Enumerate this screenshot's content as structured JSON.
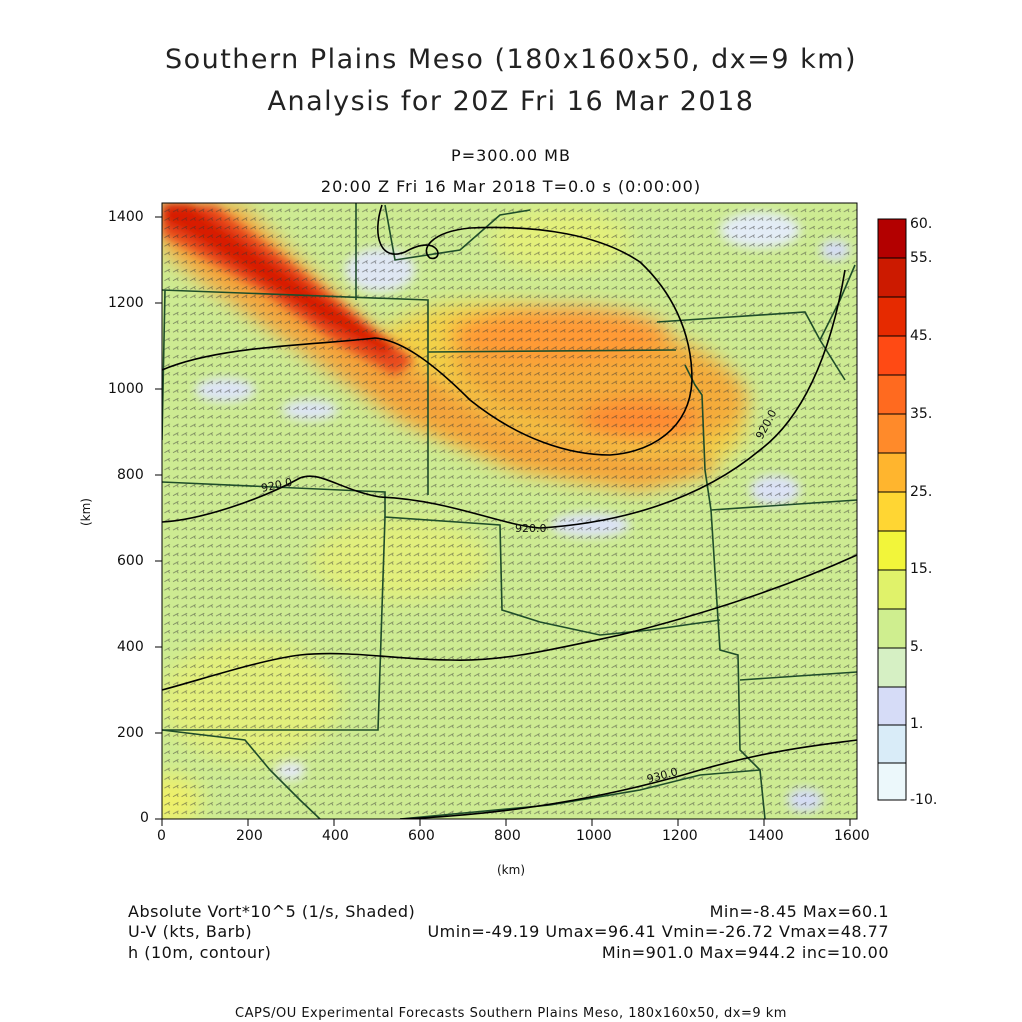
{
  "title_line1": "Southern Plains Meso (180x160x50, dx=9 km)",
  "title_line2": "Analysis for 20Z Fri 16 Mar 2018",
  "pressure_label": "P=300.00 MB",
  "time_label": "20:00 Z Fri 16 Mar 2018    T=0.0 s (0:00:00)",
  "axes": {
    "x_unit": "(km)",
    "y_unit": "(km)",
    "x_ticks": [
      "0",
      "200",
      "400",
      "600",
      "800",
      "1000",
      "1200",
      "1400",
      "1600"
    ],
    "y_ticks": [
      "0",
      "200",
      "400",
      "600",
      "800",
      "1000",
      "1200",
      "1400"
    ]
  },
  "colorbar": {
    "labels": [
      "60.",
      "55.",
      "45.",
      "35.",
      "25.",
      "15.",
      "5.",
      "1.",
      "-10."
    ],
    "colors": [
      "#b30000",
      "#cc1a00",
      "#e63300",
      "#ff5a1a",
      "#ff8a2a",
      "#ffb52e",
      "#ffdf33",
      "#f2f55c",
      "#d9f28f",
      "#c7eda6",
      "#d7dcf7",
      "#d4ecf7",
      "#eaf7fb"
    ]
  },
  "contour_labels": [
    "920.0",
    "920.0",
    "930.0",
    "920.0"
  ],
  "legend": {
    "field1": "Absolute Vort*10^5 (1/s, Shaded)",
    "field1_range": "Min=-8.45 Max=60.1",
    "field2": "U-V (kts, Barb)",
    "field2_range": "Umin=-49.19 Umax=96.41 Vmin=-26.72 Vmax=48.77",
    "field3": "h (10m, contour)",
    "field3_range": "Min=901.0 Max=944.2 inc=10.00"
  },
  "footer": "CAPS/OU Experimental Forecasts  Southern Plains Meso, 180x160x50, dx=9 km"
}
